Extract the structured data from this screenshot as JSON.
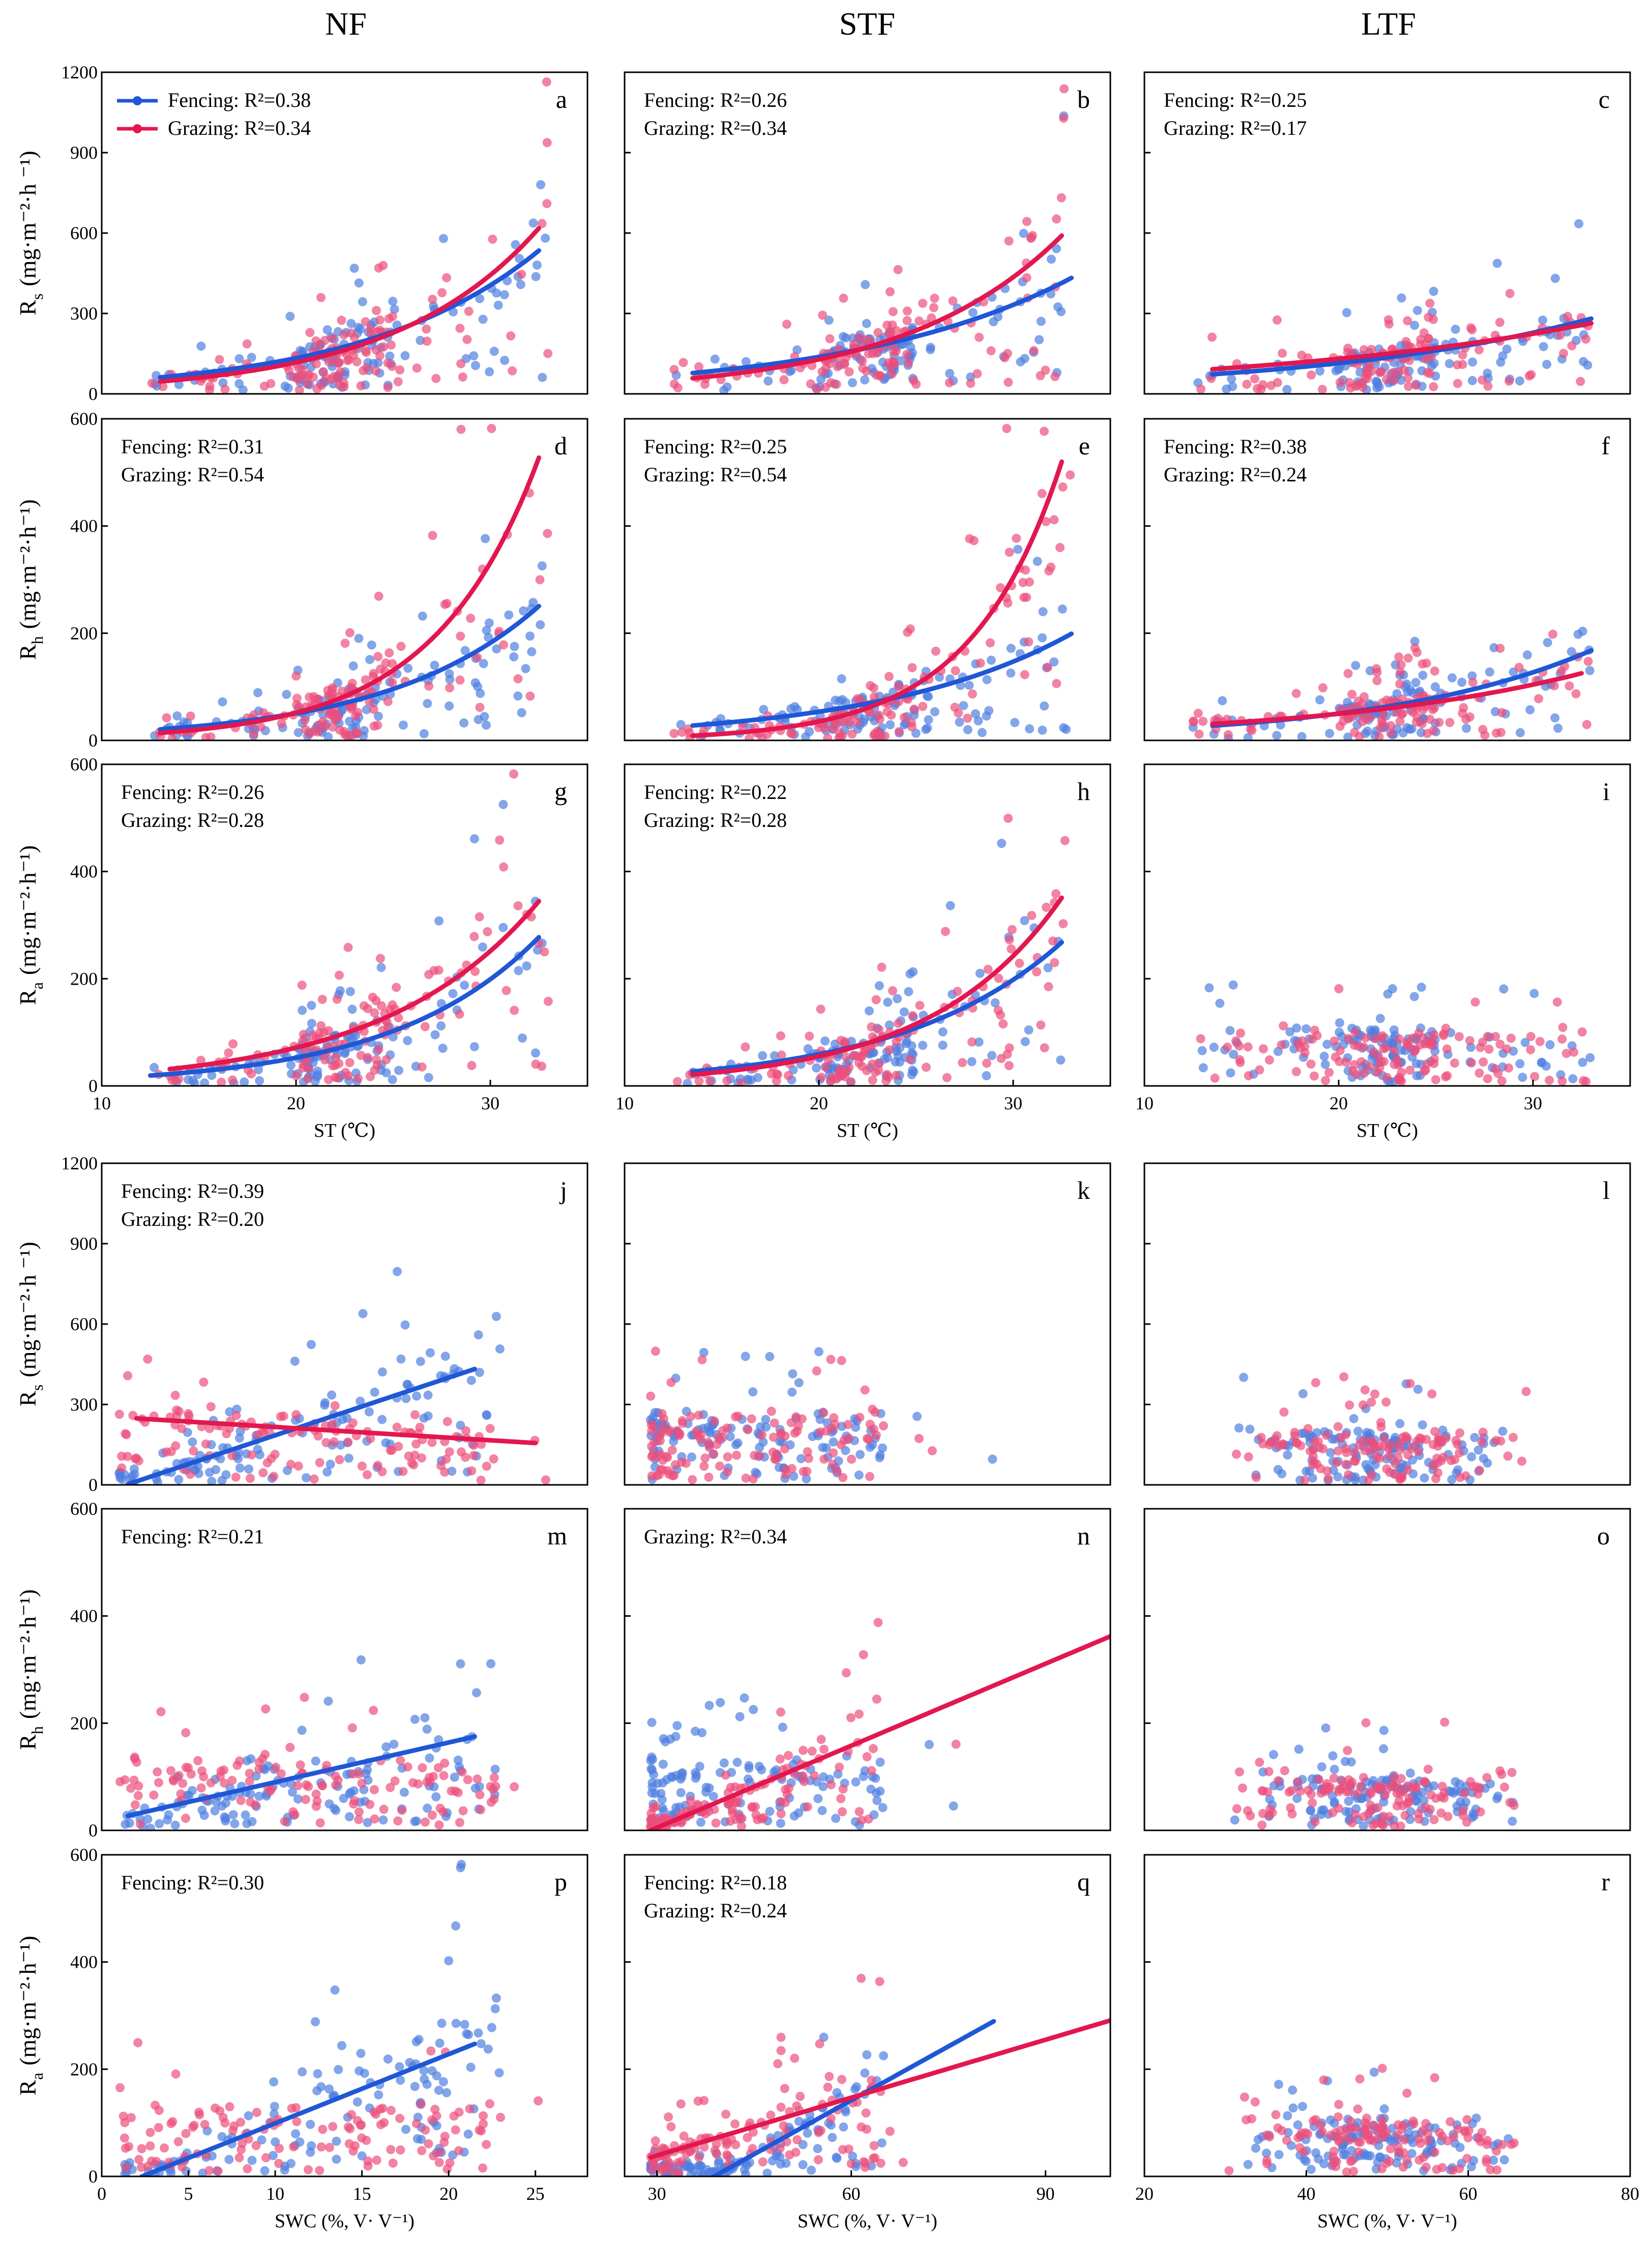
{
  "column_headers": [
    "NF",
    "STF",
    "LTF"
  ],
  "colors": {
    "fencing": "#1f57d6",
    "grazing": "#e3174f",
    "fencing_point": "#4f7fe0",
    "grazing_point": "#ec4f7a"
  },
  "legend": {
    "fencing": "Fencing",
    "grazing": "Grazing"
  },
  "ylabels": {
    "Rs": {
      "sym": "R",
      "sub": "s",
      "unit": "(mg·m⁻²·h ⁻¹)"
    },
    "Rh": {
      "sym": "R",
      "sub": "h",
      "unit": "(mg·m⁻²·h⁻¹)"
    },
    "Ra": {
      "sym": "R",
      "sub": "a",
      "unit": "(mg·m⁻²·h⁻¹)"
    }
  },
  "chart_data": [
    {
      "type": "scatter",
      "panel": "a",
      "row": 0,
      "col": 0,
      "var": "Rs",
      "xvar": "ST",
      "xlim": [
        10,
        35
      ],
      "ylim": [
        0,
        1200
      ],
      "yticks": [
        0,
        300,
        600,
        900,
        1200
      ],
      "xlabel": "",
      "show_legend": true,
      "stats": [
        {
          "series": "Fencing",
          "text": "Fencing: R²=0.38"
        },
        {
          "series": "Grazing",
          "text": "Grazing: R²=0.34"
        }
      ],
      "fits": [
        {
          "series": "Fencing",
          "model": "exp",
          "a": 14.5,
          "b": 0.111,
          "x": [
            13,
            32.5
          ]
        },
        {
          "series": "Grazing",
          "model": "exp",
          "a": 8.2,
          "b": 0.133,
          "x": [
            13,
            32.5
          ]
        }
      ]
    },
    {
      "type": "scatter",
      "panel": "b",
      "row": 0,
      "col": 1,
      "var": "Rs",
      "xvar": "ST",
      "xlim": [
        10,
        35
      ],
      "ylim": [
        0,
        1200
      ],
      "yticks": [
        0,
        300,
        600,
        900,
        1200
      ],
      "xlabel": "",
      "stats": [
        {
          "series": "Fencing",
          "text": "Fencing: R²=0.26"
        },
        {
          "series": "Grazing",
          "text": "Grazing: R²=0.34"
        }
      ],
      "fits": [
        {
          "series": "Fencing",
          "model": "exp",
          "a": 23.7,
          "b": 0.088,
          "x": [
            13.5,
            33
          ]
        },
        {
          "series": "Grazing",
          "model": "exp",
          "a": 11.2,
          "b": 0.122,
          "x": [
            13.5,
            32.5
          ]
        }
      ]
    },
    {
      "type": "scatter",
      "panel": "c",
      "row": 0,
      "col": 2,
      "var": "Rs",
      "xvar": "ST",
      "xlim": [
        10,
        35
      ],
      "ylim": [
        0,
        1200
      ],
      "yticks": [
        0,
        300,
        600,
        900,
        1200
      ],
      "xlabel": "",
      "stats": [
        {
          "series": "Fencing",
          "text": "Fencing: R²=0.25"
        },
        {
          "series": "Grazing",
          "text": "Grazing: R²=0.17"
        }
      ],
      "fits": [
        {
          "series": "Fencing",
          "model": "exp",
          "a": 28.8,
          "b": 0.069,
          "x": [
            13.5,
            33
          ]
        },
        {
          "series": "Grazing",
          "model": "exp",
          "a": 44.4,
          "b": 0.054,
          "x": [
            13.5,
            33
          ]
        }
      ]
    },
    {
      "type": "scatter",
      "panel": "d",
      "row": 1,
      "col": 0,
      "var": "Rh",
      "xvar": "ST",
      "xlim": [
        10,
        35
      ],
      "ylim": [
        0,
        600
      ],
      "yticks": [
        0,
        200,
        400,
        600
      ],
      "xlabel": "",
      "stats": [
        {
          "series": "Fencing",
          "text": "Fencing: R²=0.31"
        },
        {
          "series": "Grazing",
          "text": "Grazing: R²=0.54"
        }
      ],
      "fits": [
        {
          "series": "Fencing",
          "model": "exp",
          "a": 3.91,
          "b": 0.128,
          "x": [
            13,
            32.5
          ]
        },
        {
          "series": "Grazing",
          "model": "exp",
          "a": 1.25,
          "b": 0.186,
          "x": [
            13,
            32.5
          ]
        }
      ]
    },
    {
      "type": "scatter",
      "panel": "e",
      "row": 1,
      "col": 1,
      "var": "Rh",
      "xvar": "ST",
      "xlim": [
        10,
        35
      ],
      "ylim": [
        0,
        600
      ],
      "yticks": [
        0,
        200,
        400,
        600
      ],
      "xlabel": "",
      "stats": [
        {
          "series": "Fencing",
          "text": "Fencing: R²=0.25"
        },
        {
          "series": "Grazing",
          "text": "Grazing: R²=0.54"
        }
      ],
      "fits": [
        {
          "series": "Fencing",
          "model": "exp",
          "a": 7.1,
          "b": 0.101,
          "x": [
            13.5,
            33
          ]
        },
        {
          "series": "Grazing",
          "model": "exp",
          "a": 0.48,
          "b": 0.215,
          "x": [
            13.5,
            32.5
          ]
        }
      ]
    },
    {
      "type": "scatter",
      "panel": "f",
      "row": 1,
      "col": 2,
      "var": "Rh",
      "xvar": "ST",
      "xlim": [
        10,
        35
      ],
      "ylim": [
        0,
        600
      ],
      "yticks": [
        0,
        200,
        400,
        600
      ],
      "xlabel": "",
      "stats": [
        {
          "series": "Fencing",
          "text": "Fencing: R²=0.38"
        },
        {
          "series": "Grazing",
          "text": "Grazing: R²=0.24"
        }
      ],
      "fits": [
        {
          "series": "Fencing",
          "model": "exp",
          "a": 7.8,
          "b": 0.093,
          "x": [
            13.5,
            33
          ]
        },
        {
          "series": "Grazing",
          "model": "exp",
          "a": 11.3,
          "b": 0.074,
          "x": [
            13.5,
            32.5
          ]
        }
      ]
    },
    {
      "type": "scatter",
      "panel": "g",
      "row": 2,
      "col": 0,
      "var": "Ra",
      "xvar": "ST",
      "xlim": [
        10,
        35
      ],
      "ylim": [
        0,
        600
      ],
      "yticks": [
        0,
        200,
        400,
        600
      ],
      "xticks": [
        10,
        20,
        30
      ],
      "xlabel": "ST (℃)",
      "stats": [
        {
          "series": "Fencing",
          "text": "Fencing: R²=0.26"
        },
        {
          "series": "Grazing",
          "text": "Grazing: R²=0.28"
        }
      ],
      "fits": [
        {
          "series": "Fencing",
          "model": "exp",
          "a": 3.68,
          "b": 0.133,
          "x": [
            12.5,
            32.5
          ]
        },
        {
          "series": "Grazing",
          "model": "exp",
          "a": 5.74,
          "b": 0.126,
          "x": [
            13.5,
            32.5
          ]
        }
      ]
    },
    {
      "type": "scatter",
      "panel": "h",
      "row": 2,
      "col": 1,
      "var": "Ra",
      "xvar": "ST",
      "xlim": [
        10,
        35
      ],
      "ylim": [
        0,
        600
      ],
      "yticks": [
        0,
        200,
        400,
        600
      ],
      "xticks": [
        10,
        20,
        30
      ],
      "xlabel": "ST (℃)",
      "stats": [
        {
          "series": "Fencing",
          "text": "Fencing: R²=0.22"
        },
        {
          "series": "Grazing",
          "text": "Grazing: R²=0.28"
        }
      ],
      "fits": [
        {
          "series": "Fencing",
          "model": "exp",
          "a": 5.25,
          "b": 0.121,
          "x": [
            13.5,
            32.5
          ]
        },
        {
          "series": "Grazing",
          "model": "exp",
          "a": 2.86,
          "b": 0.148,
          "x": [
            13.5,
            32.5
          ]
        }
      ]
    },
    {
      "type": "scatter",
      "panel": "i",
      "row": 2,
      "col": 2,
      "var": "Ra",
      "xvar": "ST",
      "xlim": [
        10,
        35
      ],
      "ylim": [
        0,
        600
      ],
      "yticks": [
        0,
        200,
        400,
        600
      ],
      "xticks": [
        10,
        20,
        30
      ],
      "xlabel": "ST (℃)",
      "stats": [],
      "fits": []
    },
    {
      "type": "scatter",
      "panel": "j",
      "row": 3,
      "col": 0,
      "var": "Rs",
      "xvar": "SWC",
      "xlim": [
        0,
        28
      ],
      "ylim": [
        0,
        1200
      ],
      "yticks": [
        0,
        300,
        600,
        900,
        1200
      ],
      "xlabel": "",
      "stats": [
        {
          "series": "Fencing",
          "text": "Fencing: R²=0.39"
        },
        {
          "series": "Grazing",
          "text": "Grazing: R²=0.20"
        }
      ],
      "fits": [
        {
          "series": "Fencing",
          "model": "lin",
          "a": -30,
          "b": 21.5,
          "x": [
            1.5,
            21.5
          ]
        },
        {
          "series": "Grazing",
          "model": "lin",
          "a": 256,
          "b": -4.0,
          "x": [
            2,
            25
          ]
        }
      ]
    },
    {
      "type": "scatter",
      "panel": "k",
      "row": 3,
      "col": 1,
      "var": "Rs",
      "xvar": "SWC",
      "xlim": [
        25,
        100
      ],
      "ylim": [
        0,
        1200
      ],
      "yticks": [
        0,
        300,
        600,
        900,
        1200
      ],
      "xlabel": "",
      "stats": [],
      "fits": []
    },
    {
      "type": "scatter",
      "panel": "l",
      "row": 3,
      "col": 2,
      "var": "Rs",
      "xvar": "SWC",
      "xlim": [
        20,
        80
      ],
      "ylim": [
        0,
        1200
      ],
      "yticks": [
        0,
        300,
        600,
        900,
        1200
      ],
      "xlabel": "",
      "stats": [],
      "fits": []
    },
    {
      "type": "scatter",
      "panel": "m",
      "row": 4,
      "col": 0,
      "var": "Rh",
      "xvar": "SWC",
      "xlim": [
        0,
        28
      ],
      "ylim": [
        0,
        600
      ],
      "yticks": [
        0,
        200,
        400,
        600
      ],
      "xlabel": "",
      "stats": [
        {
          "series": "Fencing",
          "text": "Fencing: R²=0.21"
        }
      ],
      "fits": [
        {
          "series": "Fencing",
          "model": "lin",
          "a": 16,
          "b": 7.4,
          "x": [
            1.5,
            21.5
          ]
        }
      ]
    },
    {
      "type": "scatter",
      "panel": "n",
      "row": 4,
      "col": 1,
      "var": "Rh",
      "xvar": "SWC",
      "xlim": [
        25,
        100
      ],
      "ylim": [
        0,
        600
      ],
      "yticks": [
        0,
        200,
        400,
        600
      ],
      "xlabel": "",
      "stats": [
        {
          "series": "Grazing",
          "text": "Grazing: R²=0.34"
        }
      ],
      "fits": [
        {
          "series": "Grazing",
          "model": "lin",
          "a": -148,
          "b": 5.1,
          "x": [
            29,
            100
          ]
        }
      ]
    },
    {
      "type": "scatter",
      "panel": "o",
      "row": 4,
      "col": 2,
      "var": "Rh",
      "xvar": "SWC",
      "xlim": [
        20,
        80
      ],
      "ylim": [
        0,
        600
      ],
      "yticks": [
        0,
        200,
        400,
        600
      ],
      "xlabel": "",
      "stats": [],
      "fits": []
    },
    {
      "type": "scatter",
      "panel": "p",
      "row": 5,
      "col": 0,
      "var": "Ra",
      "xvar": "SWC",
      "xlim": [
        0,
        28
      ],
      "ylim": [
        0,
        600
      ],
      "yticks": [
        0,
        200,
        400,
        600
      ],
      "xticks": [
        0,
        5,
        10,
        15,
        20,
        25
      ],
      "xlabel": "SWC (%, V· V⁻¹)",
      "stats": [
        {
          "series": "Fencing",
          "text": "Fencing: R²=0.30"
        }
      ],
      "fits": [
        {
          "series": "Fencing",
          "model": "lin",
          "a": -30,
          "b": 12.9,
          "x": [
            2.3,
            21.5
          ]
        }
      ]
    },
    {
      "type": "scatter",
      "panel": "q",
      "row": 5,
      "col": 1,
      "var": "Ra",
      "xvar": "SWC",
      "xlim": [
        25,
        100
      ],
      "ylim": [
        0,
        600
      ],
      "yticks": [
        0,
        200,
        400,
        600
      ],
      "xticks": [
        30,
        60,
        90
      ],
      "xlabel": "SWC (%, V· V⁻¹)",
      "stats": [
        {
          "series": "Fencing",
          "text": "Fencing: R²=0.18"
        },
        {
          "series": "Grazing",
          "text": "Grazing: R²=0.24"
        }
      ],
      "fits": [
        {
          "series": "Fencing",
          "model": "lin",
          "a": -260,
          "b": 6.7,
          "x": [
            30,
            82
          ]
        },
        {
          "series": "Grazing",
          "model": "lin",
          "a": -69,
          "b": 3.6,
          "x": [
            29,
            100
          ]
        }
      ]
    },
    {
      "type": "scatter",
      "panel": "r",
      "row": 5,
      "col": 2,
      "var": "Ra",
      "xvar": "SWC",
      "xlim": [
        20,
        80
      ],
      "ylim": [
        0,
        600
      ],
      "yticks": [
        0,
        200,
        400,
        600
      ],
      "xticks": [
        20,
        40,
        60,
        80
      ],
      "xlabel": "SWC (%, V· V⁻¹)",
      "stats": [],
      "fits": []
    }
  ]
}
